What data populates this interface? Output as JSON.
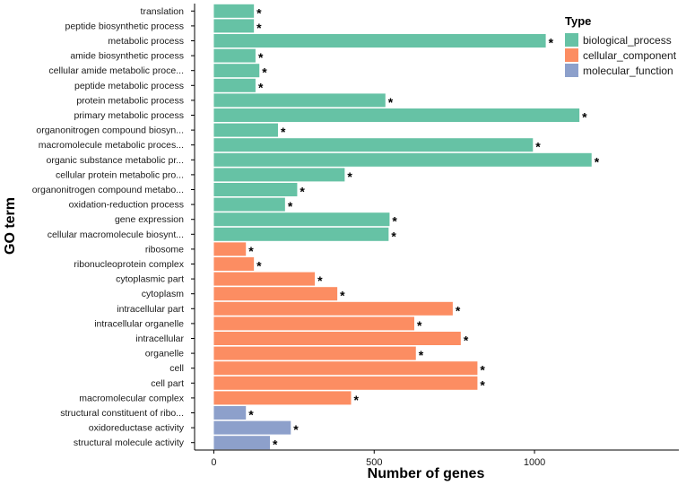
{
  "chart_data": {
    "type": "bar",
    "orientation": "horizontal",
    "title": "",
    "xlabel": "Number of genes",
    "ylabel": "GO term",
    "xlim": [
      -60,
      1450
    ],
    "xticks": [
      0,
      500,
      1000
    ],
    "grid": false,
    "legend_title": "Type",
    "legend_position": "top-right",
    "significance_marker": "*",
    "types": [
      {
        "name": "biological_process",
        "color": "#66c2a5"
      },
      {
        "name": "cellular_component",
        "color": "#fc8d62"
      },
      {
        "name": "molecular_function",
        "color": "#8da0cb"
      }
    ],
    "categories": [
      "translation",
      "peptide biosynthetic process",
      "metabolic process",
      "amide biosynthetic process",
      "cellular amide metabolic proce...",
      "peptide metabolic process",
      "protein metabolic process",
      "primary metabolic process",
      "organonitrogen compound biosyn...",
      "macromolecule metabolic proces...",
      "organic substance metabolic pr...",
      "cellular protein metabolic pro...",
      "organonitrogen compound metabo...",
      "oxidation-reduction process",
      "gene expression",
      "cellular macromolecule biosynt...",
      "ribosome",
      "ribonucleoprotein complex",
      "cytoplasmic part",
      "cytoplasm",
      "intracellular part",
      "intracellular organelle",
      "intracellular",
      "organelle",
      "cell",
      "cell part",
      "macromolecular complex",
      "structural constituent of ribo...",
      "oxidoreductase activity",
      "structural molecule activity"
    ],
    "values": [
      125,
      125,
      1035,
      130,
      142,
      130,
      535,
      1140,
      200,
      995,
      1178,
      408,
      260,
      222,
      548,
      545,
      100,
      125,
      315,
      385,
      745,
      625,
      770,
      630,
      822,
      822,
      428,
      100,
      240,
      175
    ],
    "type_of_each": [
      "biological_process",
      "biological_process",
      "biological_process",
      "biological_process",
      "biological_process",
      "biological_process",
      "biological_process",
      "biological_process",
      "biological_process",
      "biological_process",
      "biological_process",
      "biological_process",
      "biological_process",
      "biological_process",
      "biological_process",
      "biological_process",
      "cellular_component",
      "cellular_component",
      "cellular_component",
      "cellular_component",
      "cellular_component",
      "cellular_component",
      "cellular_component",
      "cellular_component",
      "cellular_component",
      "cellular_component",
      "cellular_component",
      "molecular_function",
      "molecular_function",
      "molecular_function"
    ]
  }
}
